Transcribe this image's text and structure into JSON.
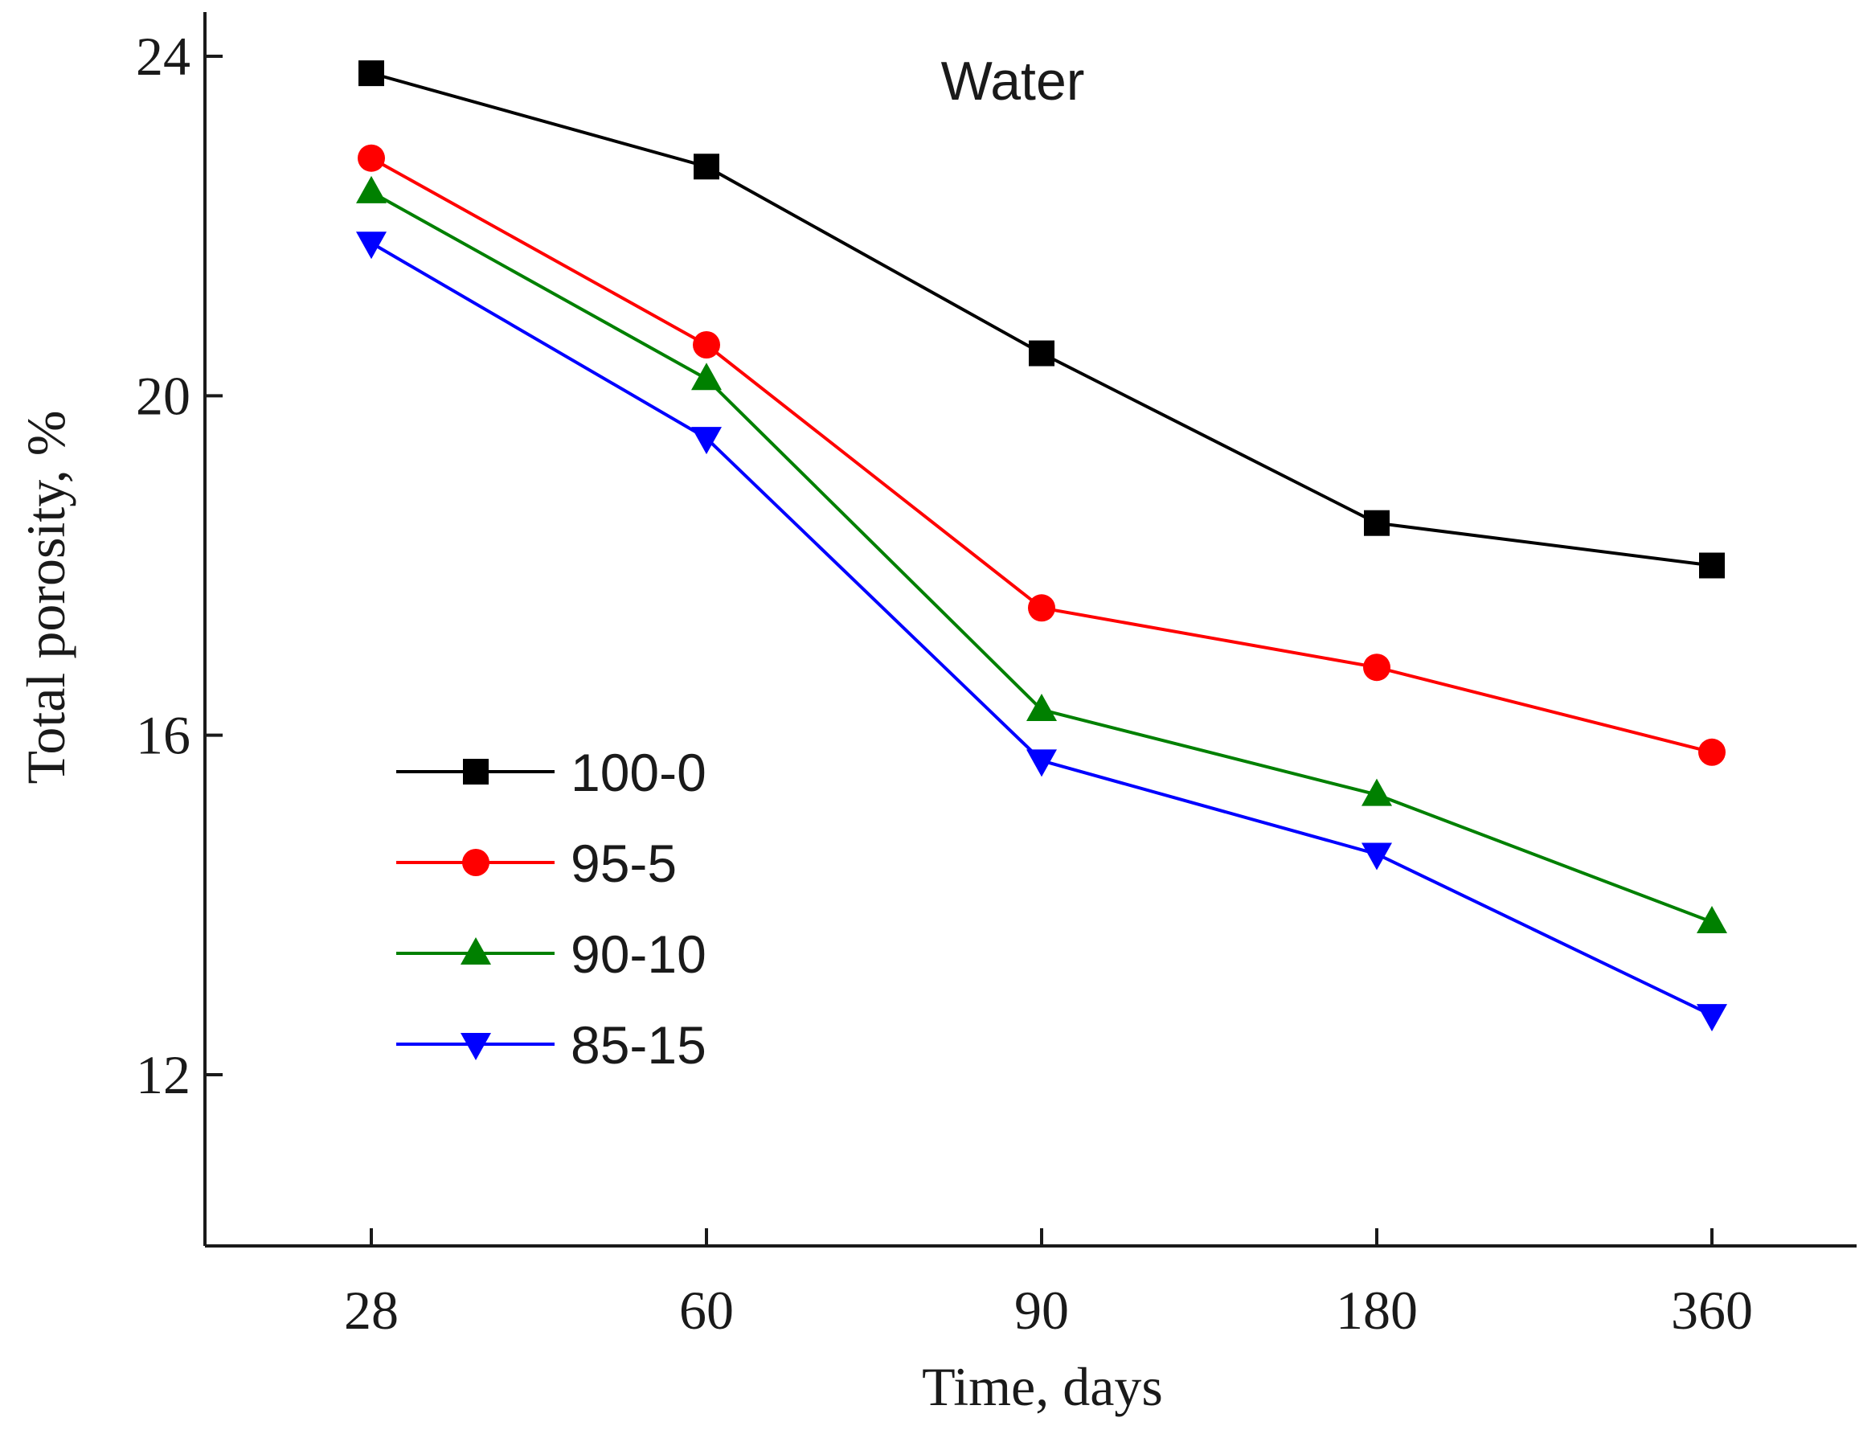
{
  "chart_data": {
    "type": "line",
    "title": "",
    "annotation": "Water",
    "xlabel": "Time, days",
    "ylabel": "Total porosity, %",
    "categories": [
      "28",
      "60",
      "90",
      "180",
      "360"
    ],
    "ylim": [
      10,
      24.5
    ],
    "yticks": [
      12,
      16,
      20,
      24
    ],
    "ytick_labels": [
      "12",
      "16",
      "20",
      "24"
    ],
    "legend_position": "center-left",
    "series": [
      {
        "name": "100-0",
        "color": "#000000",
        "marker": "square",
        "values": [
          23.8,
          22.7,
          20.5,
          18.5,
          18.0
        ]
      },
      {
        "name": "95-5",
        "color": "#ff0000",
        "marker": "circle",
        "values": [
          22.8,
          20.6,
          17.5,
          16.8,
          15.8
        ]
      },
      {
        "name": "90-10",
        "color": "#008000",
        "marker": "triangle-up",
        "values": [
          22.4,
          20.2,
          16.3,
          15.3,
          13.8
        ]
      },
      {
        "name": "85-15",
        "color": "#0000ff",
        "marker": "triangle-down",
        "values": [
          21.8,
          19.5,
          15.7,
          14.6,
          12.7
        ]
      }
    ]
  }
}
